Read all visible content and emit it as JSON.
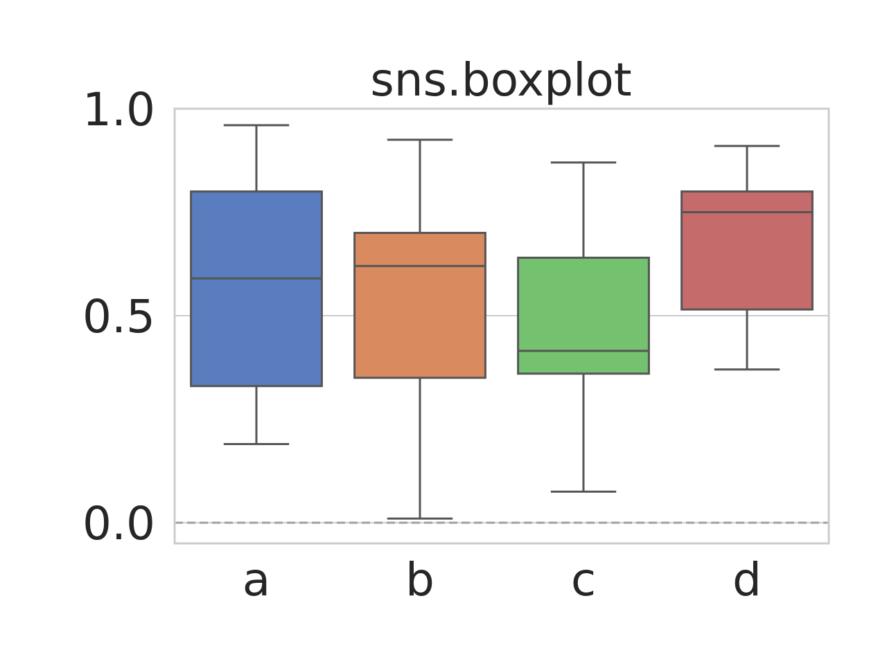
{
  "chart_data": {
    "type": "box",
    "title": "sns.boxplot",
    "xlabel": "",
    "ylabel": "",
    "categories": [
      "a",
      "b",
      "c",
      "d"
    ],
    "ylim": [
      -0.05,
      1.0
    ],
    "yticks": [
      0.0,
      0.5,
      1.0
    ],
    "ytick_labels": [
      "0.0",
      "0.5",
      "1.0"
    ],
    "grid": true,
    "reference_line": {
      "y": 0.0,
      "style": "dashed",
      "color": "#a0a0a0"
    },
    "boxes": [
      {
        "category": "a",
        "whisker_low": 0.19,
        "q1": 0.33,
        "median": 0.59,
        "q3": 0.8,
        "whisker_high": 0.96,
        "color": "#5a7dbf"
      },
      {
        "category": "b",
        "whisker_low": 0.01,
        "q1": 0.35,
        "median": 0.62,
        "q3": 0.7,
        "whisker_high": 0.925,
        "color": "#d98a5f"
      },
      {
        "category": "c",
        "whisker_low": 0.075,
        "q1": 0.36,
        "median": 0.415,
        "q3": 0.64,
        "whisker_high": 0.87,
        "color": "#74c170"
      },
      {
        "category": "d",
        "whisker_low": 0.37,
        "q1": 0.515,
        "median": 0.75,
        "q3": 0.8,
        "whisker_high": 0.91,
        "color": "#c56b6b"
      }
    ],
    "colors": {
      "line": "#555555",
      "frame": "#cccccc",
      "grid": "#cccccc",
      "text": "#262626"
    }
  }
}
